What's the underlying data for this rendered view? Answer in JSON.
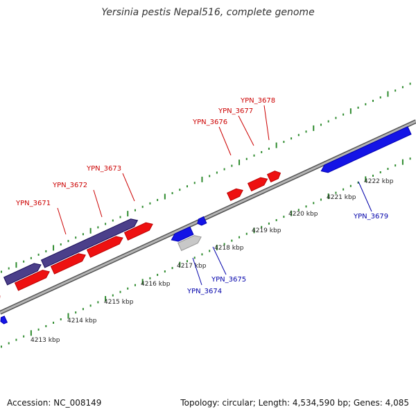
{
  "title": "Yersinia pestis Nepal516, complete genome",
  "footer": {
    "accession": "Accession: NC_008149",
    "summary": "Topology: circular; Length: 4,534,590 bp; Genes: 4,085"
  },
  "colors": {
    "backbone": "#8c8c8c",
    "tick": "#2e8b2e",
    "forward": "#ee1111",
    "reverse": "#1414e6",
    "operon": "#4b3f8a",
    "pseudo": "#c8c8c8",
    "label_forward": "#cc0000",
    "label_reverse": "#0000aa"
  },
  "scale": {
    "unit": "kbp",
    "kb_labels": [
      "4213",
      "4214",
      "4215",
      "4216",
      "4217",
      "4218",
      "4219",
      "4220",
      "4221",
      "4222"
    ]
  },
  "genes_forward": [
    "YPN_3671",
    "YPN_3672",
    "YPN_3673",
    "YPN_3676",
    "YPN_3677",
    "YPN_3678"
  ],
  "genes_reverse": [
    "YPN_3674",
    "YPN_3675",
    "YPN_3679"
  ]
}
